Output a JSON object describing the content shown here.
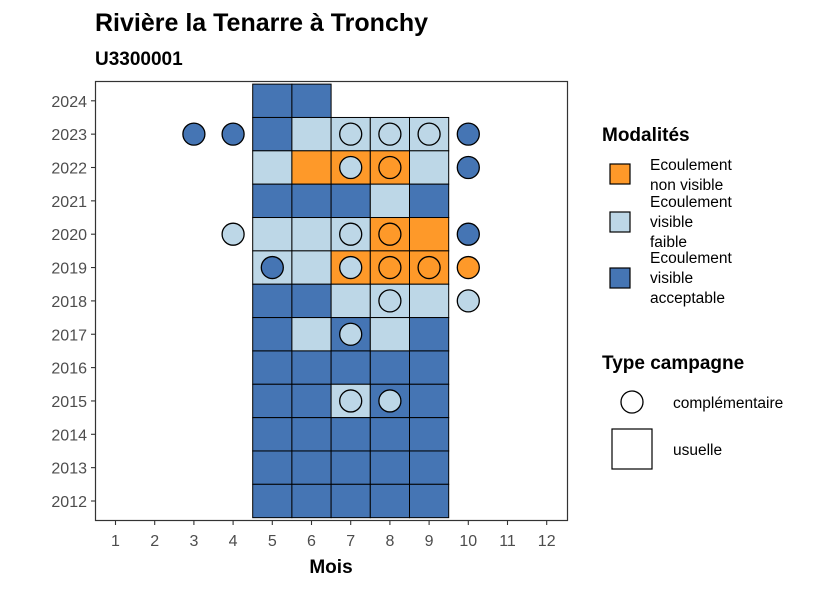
{
  "chart_data": {
    "type": "heatmap",
    "title": "Rivière la Tenarre à Tronchy",
    "subtitle": "U3300001",
    "xlabel": "Mois",
    "ylabel": "",
    "x_ticks": [
      "1",
      "2",
      "3",
      "4",
      "5",
      "6",
      "7",
      "8",
      "9",
      "10",
      "11",
      "12"
    ],
    "y_ticks": [
      "2012",
      "2013",
      "2014",
      "2015",
      "2016",
      "2017",
      "2018",
      "2019",
      "2020",
      "2021",
      "2022",
      "2023",
      "2024"
    ],
    "xlim": [
      0.5,
      12.5
    ],
    "ylim": [
      2011.4,
      2024.6
    ],
    "grid": false,
    "legend_placement": "right",
    "colors": {
      "A": "#4575b4",
      "F": "#bdd7e7",
      "N": "#fe9929"
    },
    "legend": {
      "modalites_title": "Modalités",
      "modalites": [
        {
          "key": "N",
          "lines": [
            "Ecoulement",
            "non visible"
          ]
        },
        {
          "key": "F",
          "lines": [
            "Ecoulement",
            "visible",
            "faible"
          ]
        },
        {
          "key": "A",
          "lines": [
            "Ecoulement",
            "visible",
            "acceptable"
          ]
        }
      ],
      "type_title": "Type campagne",
      "types": [
        {
          "shape": "circle",
          "label": "complémentaire"
        },
        {
          "shape": "square",
          "label": "usuelle"
        }
      ]
    },
    "usuelle": [
      {
        "year": 2024,
        "cells": [
          [
            5,
            "A"
          ],
          [
            6,
            "A"
          ]
        ]
      },
      {
        "year": 2023,
        "cells": [
          [
            5,
            "A"
          ],
          [
            6,
            "F"
          ],
          [
            7,
            "F"
          ],
          [
            8,
            "F"
          ],
          [
            9,
            "F"
          ]
        ]
      },
      {
        "year": 2022,
        "cells": [
          [
            5,
            "F"
          ],
          [
            6,
            "N"
          ],
          [
            7,
            "N"
          ],
          [
            8,
            "N"
          ],
          [
            9,
            "F"
          ]
        ]
      },
      {
        "year": 2021,
        "cells": [
          [
            5,
            "A"
          ],
          [
            6,
            "A"
          ],
          [
            7,
            "A"
          ],
          [
            8,
            "F"
          ],
          [
            9,
            "A"
          ]
        ]
      },
      {
        "year": 2020,
        "cells": [
          [
            5,
            "F"
          ],
          [
            6,
            "F"
          ],
          [
            7,
            "F"
          ],
          [
            8,
            "N"
          ],
          [
            9,
            "N"
          ]
        ]
      },
      {
        "year": 2019,
        "cells": [
          [
            5,
            "F"
          ],
          [
            6,
            "F"
          ],
          [
            7,
            "N"
          ],
          [
            8,
            "N"
          ],
          [
            9,
            "N"
          ]
        ]
      },
      {
        "year": 2018,
        "cells": [
          [
            5,
            "A"
          ],
          [
            6,
            "A"
          ],
          [
            7,
            "F"
          ],
          [
            8,
            "F"
          ],
          [
            9,
            "F"
          ]
        ]
      },
      {
        "year": 2017,
        "cells": [
          [
            5,
            "A"
          ],
          [
            6,
            "F"
          ],
          [
            7,
            "A"
          ],
          [
            8,
            "F"
          ],
          [
            9,
            "A"
          ]
        ]
      },
      {
        "year": 2016,
        "cells": [
          [
            5,
            "A"
          ],
          [
            6,
            "A"
          ],
          [
            7,
            "A"
          ],
          [
            8,
            "A"
          ],
          [
            9,
            "A"
          ]
        ]
      },
      {
        "year": 2015,
        "cells": [
          [
            5,
            "A"
          ],
          [
            6,
            "A"
          ],
          [
            7,
            "F"
          ],
          [
            8,
            "A"
          ],
          [
            9,
            "A"
          ]
        ]
      },
      {
        "year": 2014,
        "cells": [
          [
            5,
            "A"
          ],
          [
            6,
            "A"
          ],
          [
            7,
            "A"
          ],
          [
            8,
            "A"
          ],
          [
            9,
            "A"
          ]
        ]
      },
      {
        "year": 2013,
        "cells": [
          [
            5,
            "A"
          ],
          [
            6,
            "A"
          ],
          [
            7,
            "A"
          ],
          [
            8,
            "A"
          ],
          [
            9,
            "A"
          ]
        ]
      },
      {
        "year": 2012,
        "cells": [
          [
            5,
            "A"
          ],
          [
            6,
            "A"
          ],
          [
            7,
            "A"
          ],
          [
            8,
            "A"
          ],
          [
            9,
            "A"
          ]
        ]
      }
    ],
    "complementaire": [
      {
        "year": 2023,
        "cells": [
          [
            3,
            "A"
          ],
          [
            4,
            "A"
          ],
          [
            7,
            "F"
          ],
          [
            8,
            "F"
          ],
          [
            9,
            "F"
          ],
          [
            10,
            "A"
          ]
        ]
      },
      {
        "year": 2022,
        "cells": [
          [
            7,
            "F"
          ],
          [
            8,
            "N"
          ],
          [
            10,
            "A"
          ]
        ]
      },
      {
        "year": 2020,
        "cells": [
          [
            4,
            "F"
          ],
          [
            7,
            "F"
          ],
          [
            8,
            "N"
          ],
          [
            10,
            "A"
          ]
        ]
      },
      {
        "year": 2019,
        "cells": [
          [
            5,
            "A"
          ],
          [
            7,
            "F"
          ],
          [
            8,
            "N"
          ],
          [
            9,
            "N"
          ],
          [
            10,
            "N"
          ]
        ]
      },
      {
        "year": 2018,
        "cells": [
          [
            8,
            "F"
          ],
          [
            10,
            "F"
          ]
        ]
      },
      {
        "year": 2017,
        "cells": [
          [
            7,
            "F"
          ]
        ]
      },
      {
        "year": 2015,
        "cells": [
          [
            7,
            "F"
          ],
          [
            8,
            "F"
          ]
        ]
      }
    ]
  }
}
